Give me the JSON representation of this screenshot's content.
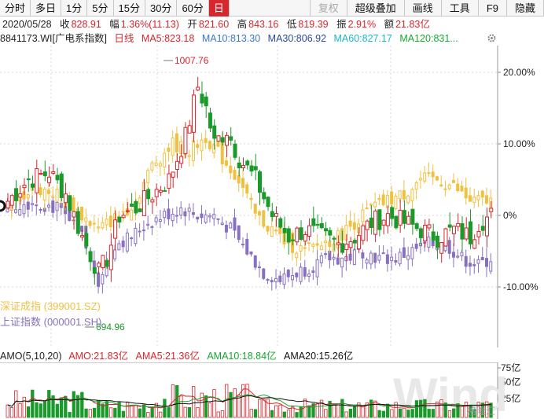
{
  "toolbar": {
    "tabs": [
      "分时",
      "多日",
      "1分",
      "5分",
      "15分",
      "30分",
      "60分",
      "日"
    ],
    "active_tab": "日",
    "right_buttons": [
      {
        "label": "复权",
        "disabled": true
      },
      {
        "label": "超级叠加",
        "disabled": false
      },
      {
        "label": "画线",
        "disabled": false
      },
      {
        "label": "工具",
        "disabled": false
      },
      {
        "label": "F9",
        "disabled": false
      },
      {
        "label": "隐藏",
        "disabled": false
      }
    ]
  },
  "info": {
    "date": "2020/05/28",
    "close_label": "收",
    "close": "828.91",
    "change_label": "幅",
    "change": "1.36%(11.13)",
    "open_label": "开",
    "open": "821.60",
    "high_label": "高",
    "high": "843.16",
    "low_label": "低",
    "low": "819.39",
    "amplitude_label": "振",
    "amplitude": "2.91%",
    "amount_label": "额",
    "amount": "21.83亿"
  },
  "ma_row": {
    "code": "8841173.WI",
    "name": "[广电系指数]",
    "period": "日线",
    "ma5": "MA5:823.18",
    "ma10": "MA10:813.30",
    "ma30": "MA30:806.92",
    "ma60": "MA60:827.17",
    "ma120": "MA120:831..."
  },
  "chart": {
    "y_ticks": [
      "20.00%",
      "10.00%",
      "0%",
      "-10.00%"
    ],
    "high_annotation": "1007.76",
    "low_annotation": "694.96",
    "legend_sz": "深证成指 (399001.SZ)",
    "legend_sh": "上证指数 (000001.SH)"
  },
  "volume": {
    "label": "AMO(5,10,20)",
    "amo": "AMO:21.83亿",
    "ama5": "AMA5:21.36亿",
    "ama10": "AMA10:18.84亿",
    "ama20": "AMA20:15.26亿",
    "y_ticks": [
      "75亿",
      "50亿",
      "25亿"
    ],
    "watermark": "Wind",
    "brand": "格隆汇"
  },
  "colors": {
    "up": "#d8262d",
    "down": "#1a9a2a",
    "ma5": "#d8262d",
    "ma10": "#3b78c8",
    "ma30": "#2a4aa0",
    "ma60": "#18b8c8",
    "ma120": "#18a832",
    "sz_index": "#f0c040",
    "sh_index": "#8870c0",
    "active_tab": "#d8262d"
  },
  "icons": {
    "settings": "gear-icon"
  }
}
